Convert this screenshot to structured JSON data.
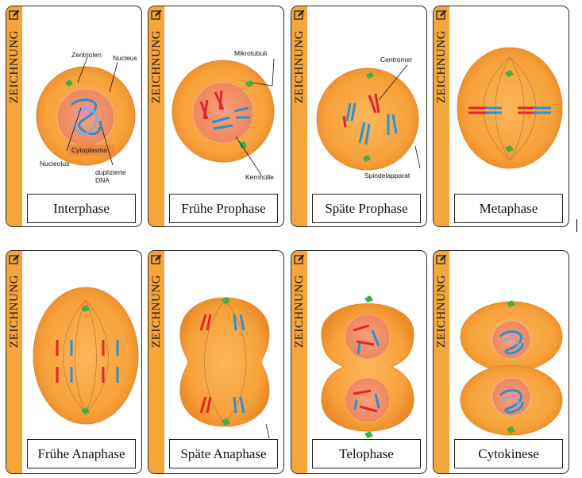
{
  "strip_label": "ZEICHNUNG",
  "icons": {
    "edit": "edit-pencil-icon"
  },
  "colors": {
    "strip": "#f5a63b",
    "cell": "#f7a13a",
    "nucleus": "#f08a62",
    "chromosome_red": "#e0242b",
    "chromosome_blue": "#2a8fd4",
    "centriole": "#3cb043"
  },
  "cards": [
    {
      "label": "Interphase"
    },
    {
      "label": "Frühe Prophase"
    },
    {
      "label": "Späte Prophase"
    },
    {
      "label": "Metaphase"
    },
    {
      "label": "Frühe Anaphase"
    },
    {
      "label": "Späte Anaphase"
    },
    {
      "label": "Telophase"
    },
    {
      "label": "Cytokinese"
    }
  ],
  "annotations": {
    "zentriolen": "Zentriolen",
    "nucleus": "Nucleus",
    "cytoplasma": "Cytoplasma",
    "nucleolus": "Nucleolus",
    "dna_line1": "duplizierte",
    "dna_line2": "DNA",
    "mikrotubuli": "Mikrotubuli",
    "kernhuelle": "Kernhülle",
    "centromer": "Centromer",
    "spindelapparat": "Spindelapparat"
  }
}
